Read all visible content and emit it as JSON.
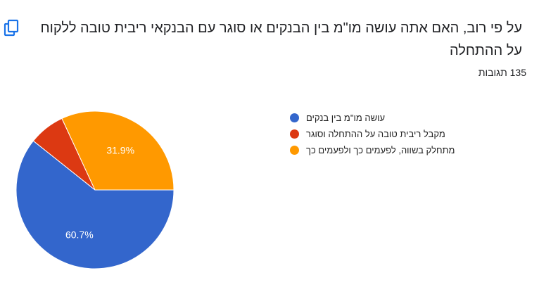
{
  "header": {
    "copy_icon": "copy-icon",
    "title": "על פי רוב, האם אתה עושה מו\"מ בין הבנקים או סוגר עם הבנקאי ריבית טובה ללקוח על ההתחלה",
    "responses": "135 תגובות"
  },
  "colors": {
    "accent": "#1a73e8",
    "label_text": "#ffffff"
  },
  "chart_data": {
    "type": "pie",
    "title": "",
    "slices": [
      {
        "label": "עושה מו\"מ בין בנקים",
        "value": 60.7,
        "value_label": "60.7%",
        "color": "#3366cc",
        "show_label": true
      },
      {
        "label": "מקבל ריבית טובה על ההתחלה וסוגר",
        "value": 7.4,
        "value_label": "",
        "color": "#dc3912",
        "show_label": false
      },
      {
        "label": "מתחלק בשווה, לפעמים כך ולפעמים כך",
        "value": 31.9,
        "value_label": "31.9%",
        "color": "#ff9900",
        "show_label": true
      }
    ],
    "legend_position": "right"
  }
}
